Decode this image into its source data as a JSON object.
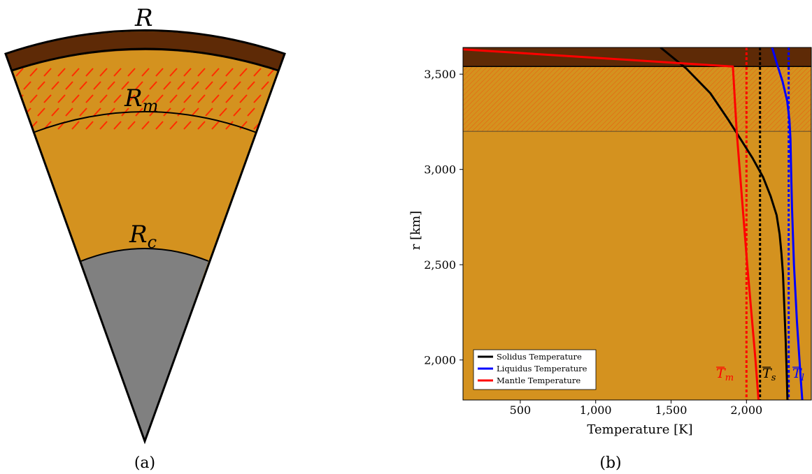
{
  "panel_a": {
    "caption": "(a)",
    "labels": {
      "surface": "R",
      "melt_base": "R",
      "melt_sub": "m",
      "core": "R",
      "core_sub": "c"
    },
    "colors": {
      "crust": "#5e2a06",
      "mantle": "#d4921f",
      "core": "#808080",
      "melt_hatch": "#ff2a00",
      "outline": "#000000"
    }
  },
  "panel_b": {
    "caption": "(b)",
    "annotations": {
      "T_m": {
        "base": "T",
        "sub": "m",
        "color": "#ff0000"
      },
      "T_s": {
        "base": "T",
        "sub": "s",
        "color": "#000000"
      },
      "T_l": {
        "base": "T",
        "sub": "l",
        "color": "#0000ff"
      }
    },
    "colors": {
      "crust": "#5e2a06",
      "mantle": "#d4921f",
      "melt_hatch": "#ff2a00"
    }
  },
  "chart_data": {
    "type": "line",
    "xlabel": "Temperature [K]",
    "ylabel": "r [km]",
    "xlim": [
      120,
      2430
    ],
    "ylim": [
      1790,
      3640
    ],
    "x_ticks": [
      500,
      1000,
      1500,
      2000
    ],
    "x_tick_labels": [
      "500",
      "1,000",
      "1,500",
      "2,000"
    ],
    "y_ticks": [
      2000,
      2500,
      3000,
      3500
    ],
    "y_tick_labels": [
      "2,000",
      "2,500",
      "3,000",
      "3,500"
    ],
    "layers": {
      "crust_base_km": 3540,
      "melt_base_km": 3200
    },
    "legend_position": "lower-left",
    "series": [
      {
        "name": "Solidus Temperature",
        "color": "#000000",
        "points": [
          [
            1430,
            3640
          ],
          [
            1600,
            3530
          ],
          [
            1760,
            3400
          ],
          [
            1880,
            3260
          ],
          [
            1960,
            3160
          ],
          [
            2040,
            3060
          ],
          [
            2110,
            2960
          ],
          [
            2160,
            2860
          ],
          [
            2200,
            2760
          ],
          [
            2220,
            2660
          ],
          [
            2232,
            2560
          ],
          [
            2242,
            2450
          ],
          [
            2250,
            2300
          ],
          [
            2260,
            2100
          ],
          [
            2268,
            1900
          ],
          [
            2272,
            1790
          ]
        ]
      },
      {
        "name": "Liquidus Temperature",
        "color": "#0000ff",
        "points": [
          [
            2170,
            3640
          ],
          [
            2200,
            3560
          ],
          [
            2240,
            3460
          ],
          [
            2270,
            3360
          ],
          [
            2285,
            3260
          ],
          [
            2292,
            3160
          ],
          [
            2296,
            3000
          ],
          [
            2302,
            2800
          ],
          [
            2315,
            2500
          ],
          [
            2335,
            2200
          ],
          [
            2360,
            1900
          ],
          [
            2370,
            1790
          ]
        ]
      },
      {
        "name": "Mantle Temperature",
        "color": "#ff0000",
        "points": [
          [
            120,
            3630
          ],
          [
            1910,
            3540
          ],
          [
            1935,
            3200
          ],
          [
            2005,
            2500
          ],
          [
            2060,
            2000
          ],
          [
            2080,
            1790
          ]
        ]
      }
    ],
    "averages": [
      {
        "name": "T_m",
        "x": 2000,
        "color": "#ff0000"
      },
      {
        "name": "T_s",
        "x": 2090,
        "color": "#000000"
      },
      {
        "name": "T_l",
        "x": 2280,
        "color": "#0000ff"
      }
    ]
  }
}
